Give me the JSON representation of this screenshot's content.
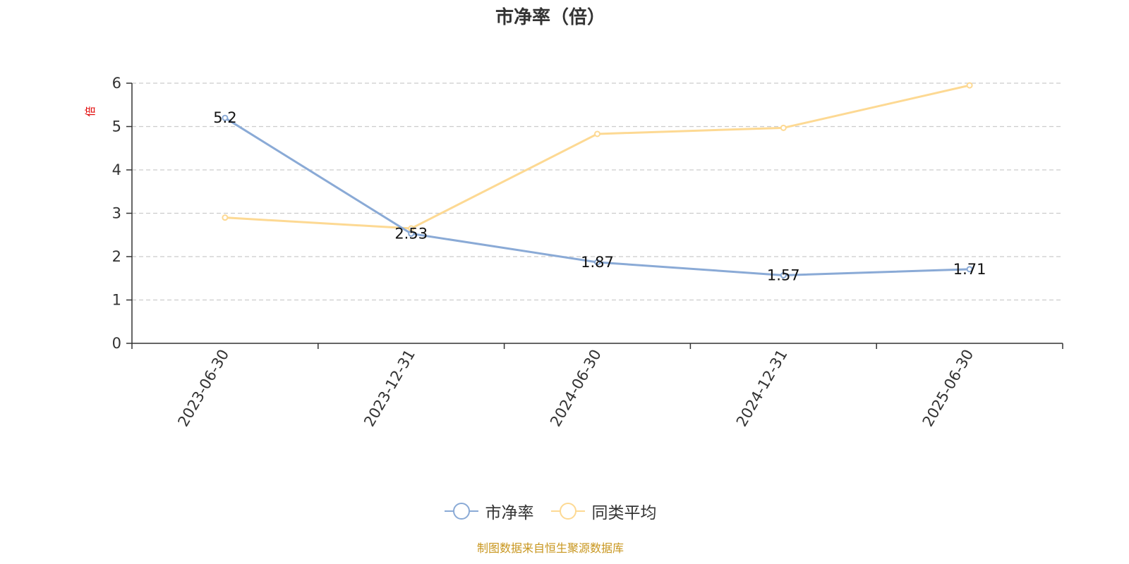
{
  "chart_data": {
    "type": "line",
    "title": "市净率（倍）",
    "ylabel": "倍",
    "xlabel": "",
    "ylim": [
      0,
      6
    ],
    "yticks": [
      "0",
      "1",
      "2",
      "3",
      "4",
      "5",
      "6"
    ],
    "grid": true,
    "legend_position": "bottom-center",
    "categories": [
      "2023-06-30",
      "2023-12-31",
      "2024-06-30",
      "2024-12-31",
      "2025-06-30"
    ],
    "series": [
      {
        "name": "市净率",
        "color": "#8aaad6",
        "values": [
          5.2,
          2.53,
          1.87,
          1.57,
          1.71
        ],
        "labels": [
          "5.2",
          "2.53",
          "1.87",
          "1.57",
          "1.71"
        ],
        "show_labels": true
      },
      {
        "name": "同类平均",
        "color": "#fdd993",
        "values": [
          2.9,
          2.65,
          4.83,
          4.97,
          5.95
        ],
        "show_labels": false
      }
    ]
  },
  "source_note": "制图数据来自恒生聚源数据库"
}
